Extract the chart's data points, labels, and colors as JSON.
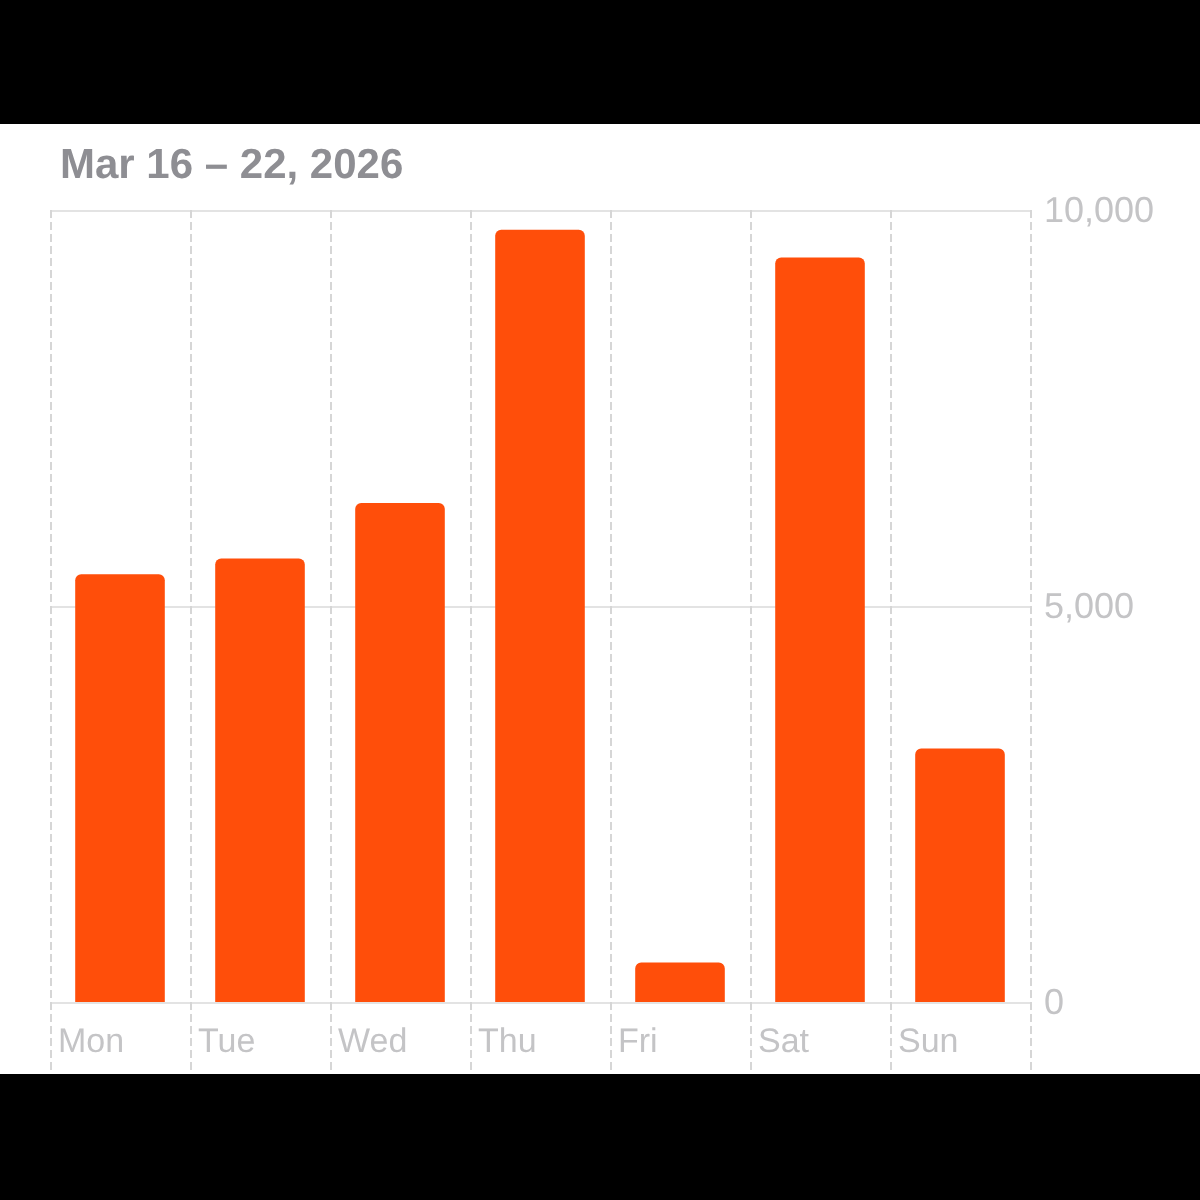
{
  "chart_data": {
    "type": "bar",
    "title": "Mar 16 – 22, 2026",
    "categories": [
      "Mon",
      "Tue",
      "Wed",
      "Thu",
      "Fri",
      "Sat",
      "Sun"
    ],
    "values": [
      5400,
      5600,
      6300,
      9750,
      500,
      9400,
      3200
    ],
    "color": "#ff4e0a",
    "ylim": [
      0,
      10000
    ],
    "yticks": [
      {
        "value": 0,
        "label": "0"
      },
      {
        "value": 5000,
        "label": "5,000"
      },
      {
        "value": 10000,
        "label": "10,000"
      }
    ],
    "grid": true
  }
}
